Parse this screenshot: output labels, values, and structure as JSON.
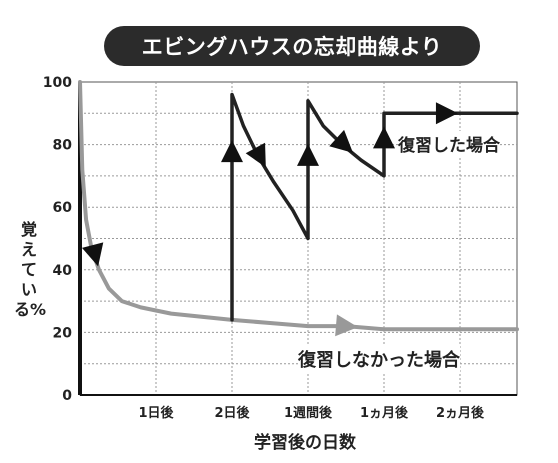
{
  "title": "エビングハウスの忘却曲線より",
  "chart_data": {
    "type": "line",
    "title": "エビングハウスの忘却曲線より",
    "xlabel": "学習後の日数",
    "ylabel": "覚えている%",
    "categories": [
      "1日後",
      "2日後",
      "1週間後",
      "1ヵ月後",
      "2ヵ月後"
    ],
    "yticks": [
      "0",
      "20",
      "40",
      "60",
      "80",
      "100"
    ],
    "ylim": [
      0,
      100
    ],
    "xlim": [
      0,
      5.75
    ],
    "grid": true,
    "series": [
      {
        "name": "復習しなかった場合",
        "color": "#999999",
        "points": [
          [
            0,
            100
          ],
          [
            0.03,
            72
          ],
          [
            0.08,
            56
          ],
          [
            0.15,
            47
          ],
          [
            0.25,
            40
          ],
          [
            0.38,
            34
          ],
          [
            0.55,
            30
          ],
          [
            0.8,
            28
          ],
          [
            1.2,
            26
          ],
          [
            1.6,
            25
          ],
          [
            2.0,
            24
          ],
          [
            2.5,
            23
          ],
          [
            3.0,
            22
          ],
          [
            3.5,
            22
          ],
          [
            4.0,
            21
          ],
          [
            5.75,
            21
          ]
        ]
      },
      {
        "name": "復習した場合",
        "color": "#222222",
        "points": [
          [
            2.0,
            24
          ],
          [
            2.0,
            96
          ],
          [
            2.15,
            86
          ],
          [
            2.35,
            76
          ],
          [
            2.55,
            68
          ],
          [
            2.8,
            59
          ],
          [
            3.0,
            50
          ],
          [
            3.0,
            94
          ],
          [
            3.2,
            86
          ],
          [
            3.45,
            80
          ],
          [
            3.7,
            75
          ],
          [
            4.0,
            70
          ],
          [
            4.0,
            90
          ],
          [
            5.75,
            90
          ]
        ]
      }
    ],
    "annotations": [
      "復習した場合",
      "復習しなかった場合"
    ]
  }
}
